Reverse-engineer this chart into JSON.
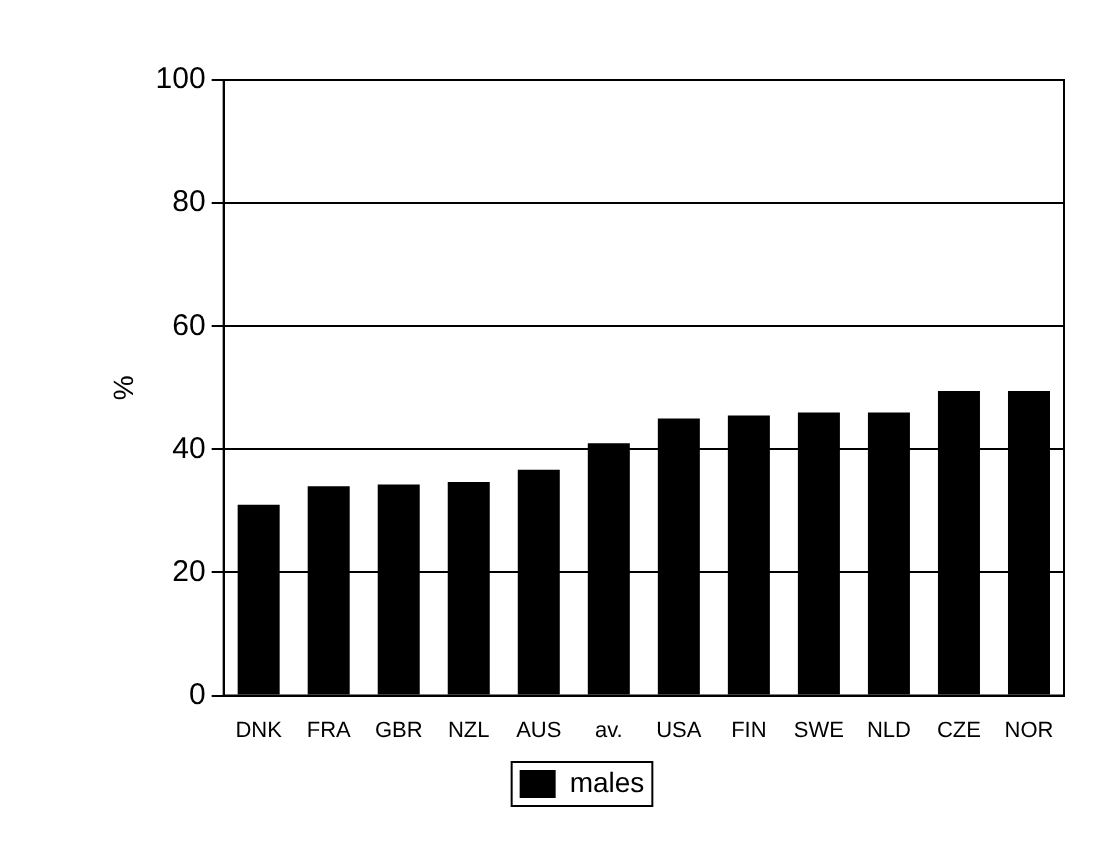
{
  "chart_data": {
    "type": "bar",
    "ylabel": "%",
    "categories": [
      "DNK",
      "FRA",
      "GBR",
      "NZL",
      "AUS",
      "av.",
      "USA",
      "FIN",
      "SWE",
      "NLD",
      "CZE",
      "NOR"
    ],
    "series": [
      {
        "name": "males",
        "color": "#000000",
        "values": [
          31,
          34,
          34.3,
          34.7,
          36.7,
          41,
          45,
          45.5,
          46,
          46,
          49.5,
          49.5
        ]
      }
    ],
    "ylim": [
      0,
      100
    ],
    "yticks": [
      0,
      20,
      40,
      60,
      80,
      100
    ],
    "grid": "y",
    "legend": "bottom"
  }
}
